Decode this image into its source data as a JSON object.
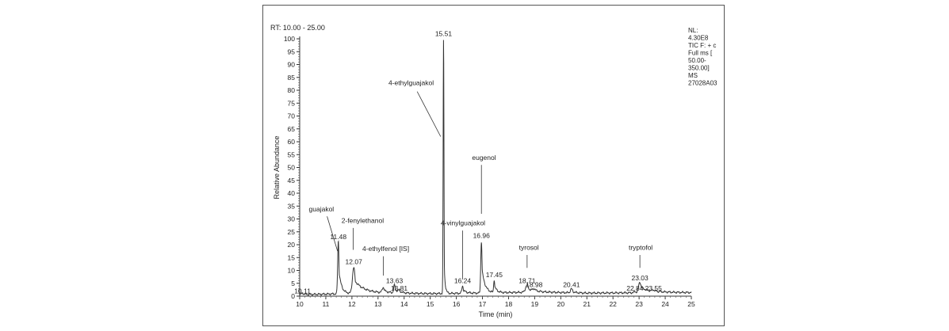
{
  "chart_data": {
    "type": "line",
    "title": "",
    "range_label": "RT: 10.00 - 25.00",
    "xlabel": "Time (min)",
    "ylabel": "Relative Abundance",
    "xlim": [
      10,
      25
    ],
    "ylim": [
      0,
      100
    ],
    "xticks": [
      10,
      11,
      12,
      13,
      14,
      15,
      16,
      17,
      18,
      19,
      20,
      21,
      22,
      23,
      24,
      25
    ],
    "yticks": [
      0,
      5,
      10,
      15,
      20,
      25,
      30,
      35,
      40,
      45,
      50,
      55,
      60,
      65,
      70,
      75,
      80,
      85,
      90,
      95,
      100
    ],
    "grid": false,
    "info_lines": [
      "NL:",
      "4.30E8",
      "TIC F: + c",
      "Full ms [",
      "50.00-",
      "350.00]",
      "MS",
      "27028A03"
    ],
    "color": "#333333",
    "baseline": [
      [
        10.0,
        0.6
      ],
      [
        11.0,
        0.8
      ],
      [
        12.5,
        1.2
      ],
      [
        13.5,
        1.2
      ],
      [
        15.0,
        1.0
      ],
      [
        17.0,
        1.2
      ],
      [
        18.5,
        1.5
      ],
      [
        19.5,
        1.5
      ],
      [
        21.0,
        1.2
      ],
      [
        22.5,
        1.3
      ],
      [
        24.0,
        1.5
      ],
      [
        25.0,
        1.4
      ]
    ],
    "peaks": [
      {
        "rt": 10.11,
        "h": 0.5,
        "w": 0.04,
        "t": 0.1
      },
      {
        "rt": 11.48,
        "h": 20.5,
        "w": 0.025,
        "t": 0.1
      },
      {
        "rt": 12.07,
        "h": 10.0,
        "w": 0.05,
        "t": 0.35
      },
      {
        "rt": 13.2,
        "h": 2.0,
        "w": 0.04,
        "t": 0.15
      },
      {
        "rt": 13.63,
        "h": 3.0,
        "w": 0.03,
        "t": 0.15
      },
      {
        "rt": 13.81,
        "h": 0.8,
        "w": 0.03,
        "t": 0.1
      },
      {
        "rt": 15.51,
        "h": 99.0,
        "w": 0.015,
        "t": 0.04
      },
      {
        "rt": 16.24,
        "h": 2.8,
        "w": 0.03,
        "t": 0.12
      },
      {
        "rt": 16.96,
        "h": 20.0,
        "w": 0.025,
        "t": 0.12
      },
      {
        "rt": 17.45,
        "h": 5.0,
        "w": 0.02,
        "t": 0.1
      },
      {
        "rt": 18.71,
        "h": 2.8,
        "w": 0.06,
        "t": 0.3
      },
      {
        "rt": 18.98,
        "h": 0.8,
        "w": 0.05,
        "t": 0.1
      },
      {
        "rt": 20.41,
        "h": 1.5,
        "w": 0.04,
        "t": 0.1
      },
      {
        "rt": 22.84,
        "h": 0.4,
        "w": 0.04,
        "t": 0.1
      },
      {
        "rt": 23.03,
        "h": 4.0,
        "w": 0.05,
        "t": 0.35
      },
      {
        "rt": 23.55,
        "h": 0.5,
        "w": 0.05,
        "t": 0.15
      }
    ],
    "rt_labels": [
      {
        "text": "10.11",
        "x": 10.11,
        "y": 0.5
      },
      {
        "text": "11.48",
        "x": 11.48,
        "y": 21.5
      },
      {
        "text": "12.07",
        "x": 12.07,
        "y": 11.8
      },
      {
        "text": "13.63",
        "x": 13.63,
        "y": 4.5
      },
      {
        "text": "13.81",
        "x": 13.81,
        "y": 1.5
      },
      {
        "text": "15.51",
        "x": 15.51,
        "y": 100.5
      },
      {
        "text": "16.24",
        "x": 16.24,
        "y": 4.5
      },
      {
        "text": "16.96",
        "x": 16.96,
        "y": 22.0
      },
      {
        "text": "17.45",
        "x": 17.45,
        "y": 6.8
      },
      {
        "text": "18.71",
        "x": 18.71,
        "y": 4.5
      },
      {
        "text": "18.98",
        "x": 18.98,
        "y": 3.0
      },
      {
        "text": "20.41",
        "x": 20.41,
        "y": 3.0
      },
      {
        "text": "22.84",
        "x": 22.84,
        "y": 1.5
      },
      {
        "text": "23.03",
        "x": 23.03,
        "y": 5.5
      },
      {
        "text": "23.55",
        "x": 23.55,
        "y": 1.5
      }
    ],
    "annotations": [
      {
        "text": "guajakol",
        "x": 10.35,
        "y": 33.0,
        "line": [
          [
            11.05,
            31.0
          ],
          [
            11.45,
            17.5
          ]
        ]
      },
      {
        "text": "2-fenylethanol",
        "x": 11.6,
        "y": 28.5,
        "line": [
          [
            12.05,
            26.5
          ],
          [
            12.05,
            18.0
          ]
        ]
      },
      {
        "text": "4-ethylfenol [IS]",
        "x": 12.4,
        "y": 17.5,
        "line": [
          [
            13.2,
            15.5
          ],
          [
            13.2,
            8.0
          ]
        ]
      },
      {
        "text": "4-ethylguajakol",
        "x": 13.4,
        "y": 82.0,
        "line": [
          [
            14.5,
            79.5
          ],
          [
            15.4,
            62.0
          ]
        ]
      },
      {
        "text": "eugenol",
        "x": 16.6,
        "y": 53.0,
        "line": [
          [
            16.96,
            51.0
          ],
          [
            16.96,
            32.0
          ]
        ]
      },
      {
        "text": "4-vinylguajakol",
        "x": 15.4,
        "y": 27.5,
        "line": [
          [
            16.24,
            25.5
          ],
          [
            16.24,
            6.5
          ]
        ]
      },
      {
        "text": "tyrosol",
        "x": 18.4,
        "y": 18.0,
        "line": [
          [
            18.71,
            16.0
          ],
          [
            18.71,
            11.0
          ]
        ]
      },
      {
        "text": "tryptofol",
        "x": 22.6,
        "y": 18.0,
        "line": [
          [
            23.03,
            16.0
          ],
          [
            23.03,
            11.0
          ]
        ]
      }
    ]
  }
}
